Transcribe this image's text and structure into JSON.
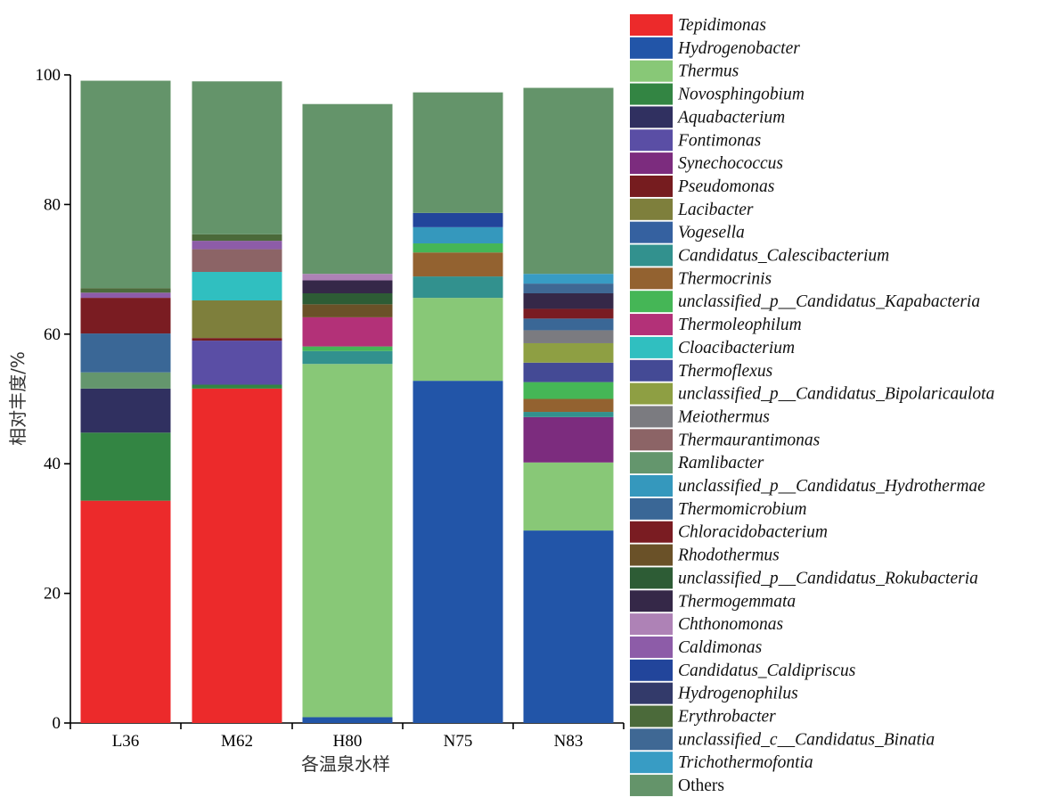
{
  "chart_data": {
    "type": "bar",
    "stacked": true,
    "ylabel": "相对丰度/%",
    "xlabel": "各温泉水样",
    "ylim": [
      0,
      100
    ],
    "yticks": [
      0,
      20,
      40,
      60,
      80,
      100
    ],
    "categories": [
      "L36",
      "M62",
      "H80",
      "N75",
      "N83"
    ],
    "legend_position": "right",
    "series": [
      {
        "name": "Tepidimonas",
        "color": "#ec2a2b",
        "values": [
          34.3,
          51.6,
          0,
          0,
          0
        ]
      },
      {
        "name": "Hydrogenobacter",
        "color": "#2255a8",
        "values": [
          0,
          0,
          0.9,
          52.8,
          29.7
        ]
      },
      {
        "name": "Thermus",
        "color": "#88c877",
        "values": [
          0,
          0,
          54.5,
          12.8,
          10.5
        ]
      },
      {
        "name": "Novosphingobium",
        "color": "#338543",
        "values": [
          10.5,
          0.6,
          0,
          0,
          0
        ]
      },
      {
        "name": "Aquabacterium",
        "color": "#303060",
        "values": [
          6.8,
          0,
          0,
          0,
          0
        ]
      },
      {
        "name": "Fontimonas",
        "color": "#5a4ea5",
        "values": [
          0,
          6.8,
          0,
          0,
          0
        ]
      },
      {
        "name": "Synechococcus",
        "color": "#7c2c7e",
        "values": [
          0,
          0,
          0,
          0,
          7.0
        ]
      },
      {
        "name": "Pseudomonas",
        "color": "#761c1f",
        "values": [
          0,
          0.4,
          0,
          0,
          0
        ]
      },
      {
        "name": "Lacibacter",
        "color": "#7e7f3c",
        "values": [
          0,
          5.8,
          0,
          0,
          0
        ]
      },
      {
        "name": "Vogesella",
        "color": "#3561a0",
        "values": [
          0,
          0,
          0,
          0,
          0
        ]
      },
      {
        "name": "Candidatus_Calescibacterium",
        "color": "#32918e",
        "values": [
          0,
          0,
          2.0,
          3.3,
          0.8
        ]
      },
      {
        "name": "Thermocrinis",
        "color": "#936230",
        "values": [
          0,
          0,
          0,
          3.7,
          2.0
        ]
      },
      {
        "name": "unclassified_p__Candidatus_Kapabacteria",
        "color": "#45b656",
        "values": [
          0,
          0,
          0.7,
          1.4,
          2.6
        ]
      },
      {
        "name": "Thermoleophilum",
        "color": "#b33178",
        "values": [
          0,
          0,
          4.5,
          0,
          0
        ]
      },
      {
        "name": "Cloacibacterium",
        "color": "#30bfc0",
        "values": [
          0,
          4.4,
          0,
          0,
          0
        ]
      },
      {
        "name": "Thermoflexus",
        "color": "#444a95",
        "values": [
          0,
          0,
          0,
          0,
          3.0
        ]
      },
      {
        "name": "unclassified_p__Candidatus_Bipolaricaulota",
        "color": "#8e9f43",
        "values": [
          0,
          0,
          0,
          0,
          3.0
        ]
      },
      {
        "name": "Meiothermus",
        "color": "#7b7b80",
        "values": [
          0,
          0,
          0,
          0,
          2.0
        ]
      },
      {
        "name": "Thermaurantimonas",
        "color": "#8c6466",
        "values": [
          0,
          3.5,
          0,
          0,
          0
        ]
      },
      {
        "name": "Ramlibacter",
        "color": "#64966d",
        "values": [
          2.5,
          0,
          0,
          0,
          0
        ]
      },
      {
        "name": "unclassified_p__Candidatus_Hydrothermae",
        "color": "#3598bd",
        "values": [
          0,
          0,
          0,
          2.5,
          0
        ]
      },
      {
        "name": "Thermomicrobium",
        "color": "#3a6796",
        "values": [
          6.0,
          0,
          0,
          0,
          1.8
        ]
      },
      {
        "name": "Chloracidobacterium",
        "color": "#7a1c22",
        "values": [
          5.5,
          0,
          0,
          0,
          1.5
        ]
      },
      {
        "name": "Rhodothermus",
        "color": "#6a5128",
        "values": [
          0,
          0,
          2.0,
          0,
          0
        ]
      },
      {
        "name": "unclassified_p__Candidatus_Rokubacteria",
        "color": "#2d5c35",
        "values": [
          0,
          0,
          1.7,
          0,
          0
        ]
      },
      {
        "name": "Thermogemmata",
        "color": "#352848",
        "values": [
          0,
          0,
          2.0,
          0,
          2.4
        ]
      },
      {
        "name": "Chthonomonas",
        "color": "#ae82b6",
        "values": [
          0,
          0,
          1.0,
          0,
          0
        ]
      },
      {
        "name": "Caldimonas",
        "color": "#8d5ca8",
        "values": [
          0.8,
          1.3,
          0,
          0,
          0
        ]
      },
      {
        "name": "Candidatus_Caldipriscus",
        "color": "#22459b",
        "values": [
          0,
          0,
          0,
          2.2,
          0
        ]
      },
      {
        "name": "Hydrogenophilus",
        "color": "#333a6a",
        "values": [
          0,
          0,
          0,
          0,
          0
        ]
      },
      {
        "name": "Erythrobacter",
        "color": "#4b6a3a",
        "values": [
          0.7,
          1.0,
          0,
          0,
          0
        ]
      },
      {
        "name": "unclassified_c__Candidatus_Binatia",
        "color": "#3f6894",
        "values": [
          0,
          0,
          0,
          0,
          1.5
        ]
      },
      {
        "name": "Trichothermofontia",
        "color": "#389cc4",
        "values": [
          0,
          0,
          0,
          0,
          1.5
        ]
      },
      {
        "name": "Others",
        "color": "#64946a",
        "values": [
          32.0,
          23.6,
          26.2,
          18.6,
          28.7
        ]
      }
    ]
  }
}
